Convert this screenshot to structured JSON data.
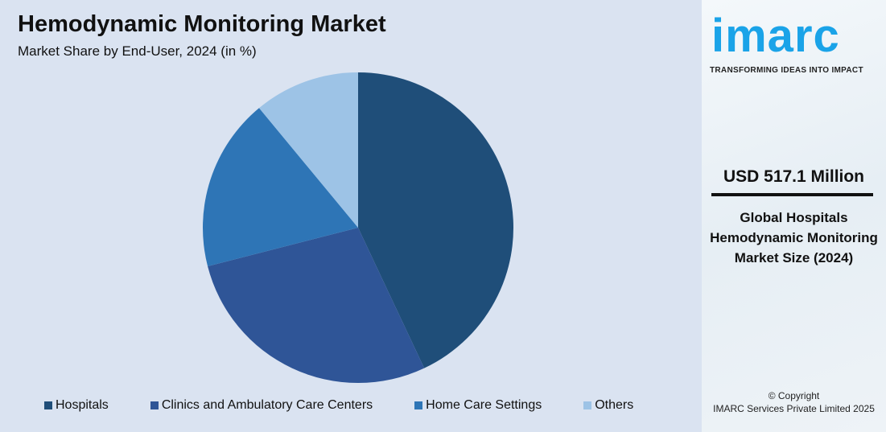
{
  "chart_data": {
    "type": "pie",
    "title": "Hemodynamic Monitoring Market",
    "subtitle": "Market Share by End-User, 2024 (in %)",
    "categories": [
      "Hospitals",
      "Clinics and Ambulatory Care Centers",
      "Home Care Settings",
      "Others"
    ],
    "values": [
      43,
      28,
      18,
      11
    ],
    "colors": [
      "#1f4e79",
      "#2f5597",
      "#2e75b6",
      "#9dc3e6"
    ],
    "legend": "bottom"
  },
  "sidebar": {
    "logo": "imarc",
    "tagline": "TRANSFORMING IDEAS INTO IMPACT",
    "value": "USD 517.1 Million",
    "description": "Global Hospitals Hemodynamic Monitoring Market Size (2024)",
    "copyright_line1": "© Copyright",
    "copyright_line2": "IMARC Services Private Limited 2025"
  }
}
